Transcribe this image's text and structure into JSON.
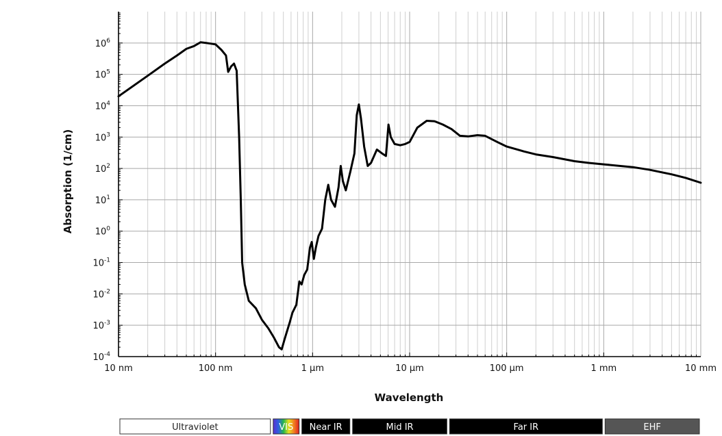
{
  "chart_data": {
    "type": "line",
    "title": "",
    "xlabel": "Wavelength",
    "ylabel": "Absorption (1/cm)",
    "x_scale": "log",
    "y_scale": "log",
    "x_unit": "m",
    "y_unit": "1/cm",
    "xlim": [
      1e-08,
      0.01
    ],
    "ylim": [
      0.0001,
      10000000
    ],
    "grid": true,
    "x_tick_labels": [
      {
        "value": 1e-08,
        "label": "10 nm"
      },
      {
        "value": 1e-07,
        "label": "100 nm"
      },
      {
        "value": 1e-06,
        "label": "1 μm"
      },
      {
        "value": 1e-05,
        "label": "10 μm"
      },
      {
        "value": 0.0001,
        "label": "100 μm"
      },
      {
        "value": 0.001,
        "label": "1 mm"
      },
      {
        "value": 0.01,
        "label": "10 mm"
      }
    ],
    "y_tick_labels": [
      {
        "value": 0.0001,
        "base": "10",
        "exp": "-4"
      },
      {
        "value": 0.001,
        "base": "10",
        "exp": "-3"
      },
      {
        "value": 0.01,
        "base": "10",
        "exp": "-2"
      },
      {
        "value": 0.1,
        "base": "10",
        "exp": "-1"
      },
      {
        "value": 1,
        "base": "10",
        "exp": "0"
      },
      {
        "value": 10.0,
        "base": "10",
        "exp": "1"
      },
      {
        "value": 100.0,
        "base": "10",
        "exp": "2"
      },
      {
        "value": 1000.0,
        "base": "10",
        "exp": "3"
      },
      {
        "value": 10000.0,
        "base": "10",
        "exp": "4"
      },
      {
        "value": 100000.0,
        "base": "10",
        "exp": "5"
      },
      {
        "value": 1000000.0,
        "base": "10",
        "exp": "6"
      }
    ],
    "series": [
      {
        "color": "#000000",
        "points": [
          [
            1e-08,
            20000.0
          ],
          [
            2e-08,
            90000.0
          ],
          [
            3e-08,
            220000.0
          ],
          [
            4e-08,
            400000.0
          ],
          [
            5e-08,
            650000.0
          ],
          [
            6e-08,
            800000.0
          ],
          [
            7e-08,
            1050000.0
          ],
          [
            8e-08,
            1000000.0
          ],
          [
            9e-08,
            950000.0
          ],
          [
            1e-07,
            900000.0
          ],
          [
            1.15e-07,
            600000.0
          ],
          [
            1.28e-07,
            400000.0
          ],
          [
            1.35e-07,
            120000.0
          ],
          [
            1.45e-07,
            180000.0
          ],
          [
            1.55e-07,
            220000.0
          ],
          [
            1.65e-07,
            130000.0
          ],
          [
            1.75e-07,
            1000.0
          ],
          [
            1.82e-07,
            10.0
          ],
          [
            1.88e-07,
            0.1
          ],
          [
            2e-07,
            0.02
          ],
          [
            2.2e-07,
            0.006
          ],
          [
            2.6e-07,
            0.0035
          ],
          [
            3e-07,
            0.0015
          ],
          [
            3.5e-07,
            0.0008
          ],
          [
            4e-07,
            0.0004
          ],
          [
            4.5e-07,
            0.0002
          ],
          [
            4.8e-07,
            0.00017
          ],
          [
            5.2e-07,
            0.0004
          ],
          [
            5.8e-07,
            0.0012
          ],
          [
            6.2e-07,
            0.0025
          ],
          [
            6.8e-07,
            0.0045
          ],
          [
            7.3e-07,
            0.025
          ],
          [
            7.7e-07,
            0.02
          ],
          [
            8.2e-07,
            0.04
          ],
          [
            8.8e-07,
            0.06
          ],
          [
            9.4e-07,
            0.3
          ],
          [
            9.8e-07,
            0.45
          ],
          [
            1.03e-06,
            0.13
          ],
          [
            1.08e-06,
            0.3
          ],
          [
            1.15e-06,
            0.7
          ],
          [
            1.25e-06,
            1.2
          ],
          [
            1.35e-06,
            10.0
          ],
          [
            1.45e-06,
            30.0
          ],
          [
            1.55e-06,
            10.0
          ],
          [
            1.7e-06,
            6.0
          ],
          [
            1.85e-06,
            25.0
          ],
          [
            1.95e-06,
            120.0
          ],
          [
            2.05e-06,
            40.0
          ],
          [
            2.2e-06,
            20.0
          ],
          [
            2.45e-06,
            80.0
          ],
          [
            2.7e-06,
            300.0
          ],
          [
            2.85e-06,
            5000.0
          ],
          [
            3e-06,
            11000.0
          ],
          [
            3.15e-06,
            4000.0
          ],
          [
            3.4e-06,
            500.0
          ],
          [
            3.7e-06,
            120.0
          ],
          [
            4e-06,
            150.0
          ],
          [
            4.6e-06,
            400.0
          ],
          [
            5.2e-06,
            300.0
          ],
          [
            5.7e-06,
            250.0
          ],
          [
            6.05e-06,
            2500.0
          ],
          [
            6.4e-06,
            1000.0
          ],
          [
            7e-06,
            600.0
          ],
          [
            8e-06,
            550.0
          ],
          [
            9e-06,
            600.0
          ],
          [
            1e-05,
            700.0
          ],
          [
            1.2e-05,
            2000.0
          ],
          [
            1.5e-05,
            3300.0
          ],
          [
            1.8e-05,
            3200.0
          ],
          [
            2.2e-05,
            2500.0
          ],
          [
            2.7e-05,
            1800.0
          ],
          [
            3.3e-05,
            1100.0
          ],
          [
            4e-05,
            1050.0
          ],
          [
            5e-05,
            1150.0
          ],
          [
            6e-05,
            1100.0
          ],
          [
            8e-05,
            700.0
          ],
          [
            0.0001,
            500.0
          ],
          [
            0.00015,
            350.0
          ],
          [
            0.0002,
            280.0
          ],
          [
            0.0003,
            230.0
          ],
          [
            0.0005,
            170.0
          ],
          [
            0.0007,
            150.0
          ],
          [
            0.001,
            135.0
          ],
          [
            0.002,
            110.0
          ],
          [
            0.003,
            90.0
          ],
          [
            0.005,
            65.0
          ],
          [
            0.007,
            50.0
          ],
          [
            0.01,
            35.0
          ]
        ]
      }
    ]
  },
  "spectrum_bands": [
    {
      "label": "Ultraviolet",
      "from": 1e-08,
      "to": 3.8e-07,
      "bg": "#ffffff",
      "fg": "#222222"
    },
    {
      "label": "VIS",
      "from": 3.8e-07,
      "to": 7.5e-07,
      "bg": "visible-gradient",
      "fg": "#ffffff"
    },
    {
      "label": "Near IR",
      "from": 7.5e-07,
      "to": 2.5e-06,
      "bg": "#000000",
      "fg": "#ffffff"
    },
    {
      "label": "Mid IR",
      "from": 2.5e-06,
      "to": 2.5e-05,
      "bg": "#000000",
      "fg": "#ffffff"
    },
    {
      "label": "Far IR",
      "from": 2.5e-05,
      "to": 0.001,
      "bg": "#000000",
      "fg": "#ffffff"
    },
    {
      "label": "EHF",
      "from": 0.001,
      "to": 0.01,
      "bg": "#555555",
      "fg": "#ffffff"
    }
  ]
}
